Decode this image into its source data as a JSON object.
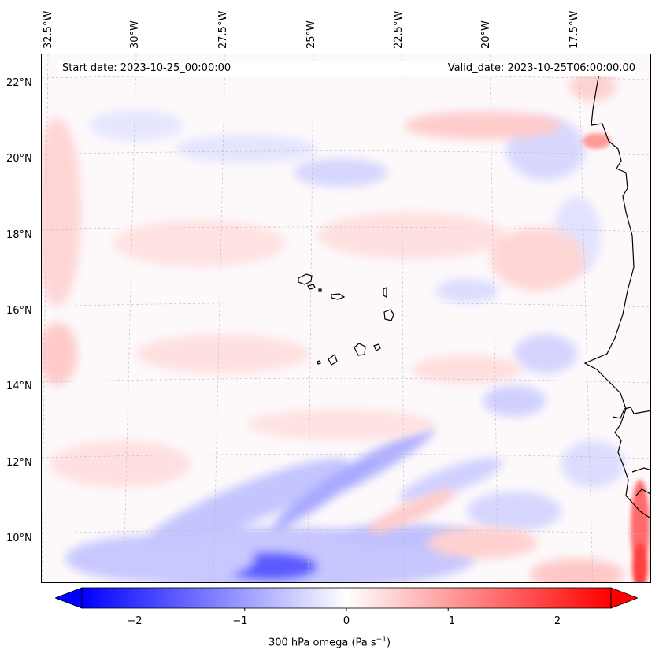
{
  "header": {
    "start_date": "Start date: 2023-10-25_00:00:00",
    "valid_date": "Valid_date: 2023-10-25T06:00:00.00"
  },
  "axes": {
    "lon_labels": [
      "32.5°W",
      "30°W",
      "27.5°W",
      "25°W",
      "22.5°W",
      "20°W",
      "17.5°W"
    ],
    "lat_labels": [
      "22°N",
      "20°N",
      "18°N",
      "16°N",
      "14°N",
      "12°N",
      "10°N"
    ]
  },
  "colorbar": {
    "label_text": "300 hPa omega (Pa s",
    "label_sup": "−1",
    "label_close": ")",
    "ticks": [
      "−2",
      "−1",
      "0",
      "1",
      "2"
    ],
    "range": [
      -2.6,
      2.6
    ],
    "extend": "both",
    "colormap": "bwr",
    "colors": {
      "min": "#0000ff",
      "mid": "#ffffff",
      "max": "#ff0000"
    }
  },
  "map": {
    "field": "300 hPa omega",
    "coastline_color": "#000000",
    "gridlines": "dashed"
  }
}
